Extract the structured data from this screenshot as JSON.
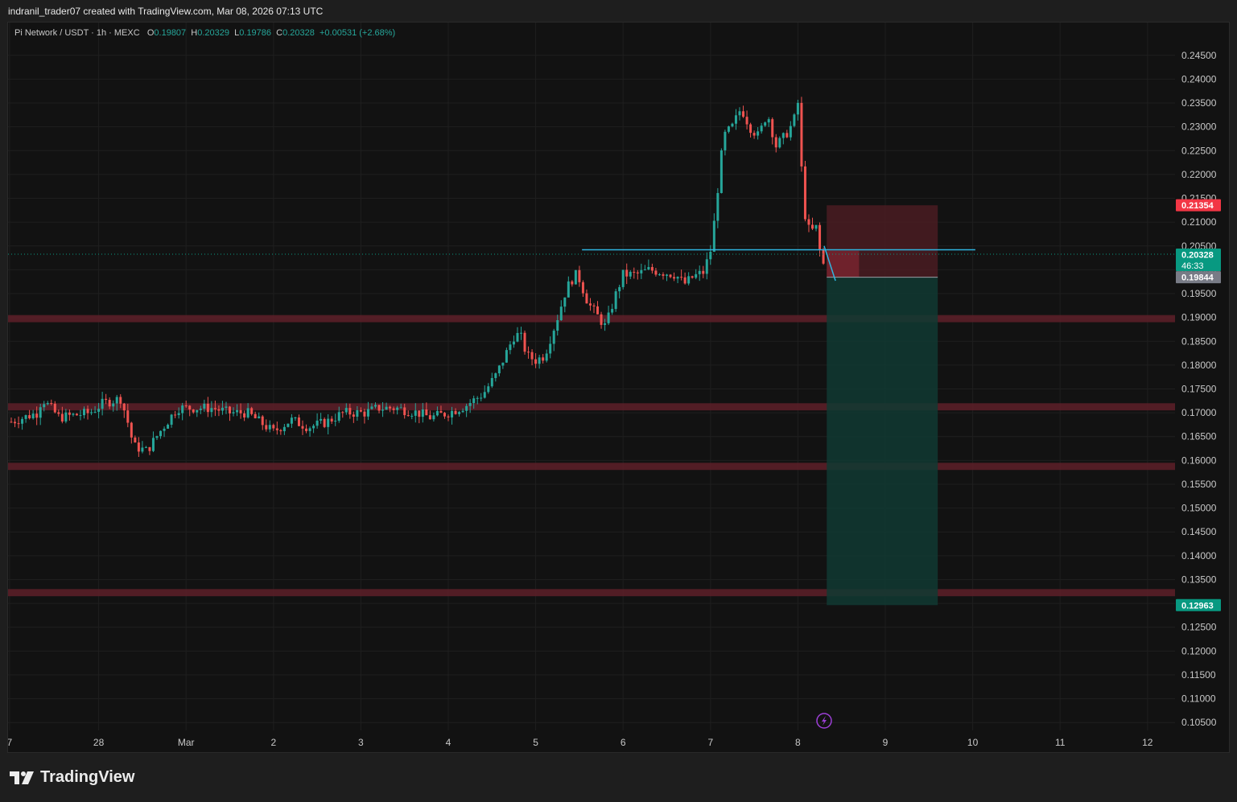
{
  "header": {
    "text": "indranil_trader07 created with TradingView.com, Mar 08, 2026 07:13 UTC"
  },
  "legend": {
    "symbol": "Pi Network / USDT · 1h · MEXC",
    "o_label": "O",
    "o": "0.19807",
    "h_label": "H",
    "h": "0.20329",
    "l_label": "L",
    "l": "0.19786",
    "c_label": "C",
    "c": "0.20328",
    "change": "+0.00531 (+2.68%)"
  },
  "brand": {
    "name": "TradingView"
  },
  "colors": {
    "up": "#26a69a",
    "down": "#ef5350",
    "grid": "#1f1f1f",
    "axis_text": "#c8c8c8",
    "zone": "#5a1f28",
    "level_line": "#2fb5e0",
    "stop_box": "#4a1c22",
    "target_box": "#103a32",
    "sl_badge": "#f23645",
    "price_badge": "#089981",
    "entry_badge": "#787b86",
    "tp_badge": "#089981",
    "icon": "#9c3fd6"
  },
  "chart_data": {
    "type": "candlestick",
    "title": "",
    "symbol": "Pi Network / USDT",
    "timeframe": "1h",
    "exchange": "MEXC",
    "ylim": [
      0.1025,
      0.2475
    ],
    "y_ticks": [
      "0.24500",
      "0.24000",
      "0.23500",
      "0.23000",
      "0.22500",
      "0.22000",
      "0.21500",
      "0.21000",
      "0.20500",
      "0.20000",
      "0.19500",
      "0.19000",
      "0.18500",
      "0.18000",
      "0.17500",
      "0.17000",
      "0.16500",
      "0.16000",
      "0.15500",
      "0.15000",
      "0.14500",
      "0.14000",
      "0.13500",
      "0.13000",
      "0.12500",
      "0.12000",
      "0.11500",
      "0.11000",
      "0.10500"
    ],
    "x_ticks": [
      {
        "label": "7",
        "day": -0.02
      },
      {
        "label": "28",
        "day": 1.0
      },
      {
        "label": "Mar",
        "day": 2.0
      },
      {
        "label": "2",
        "day": 3.0
      },
      {
        "label": "3",
        "day": 4.0
      },
      {
        "label": "4",
        "day": 5.0
      },
      {
        "label": "5",
        "day": 6.0
      },
      {
        "label": "6",
        "day": 7.0
      },
      {
        "label": "7",
        "day": 8.0
      },
      {
        "label": "8",
        "day": 9.0
      },
      {
        "label": "9",
        "day": 10.0
      },
      {
        "label": "10",
        "day": 11.0
      },
      {
        "label": "11",
        "day": 12.0
      },
      {
        "label": "12",
        "day": 13.0
      }
    ],
    "price_path": [
      [
        0.0,
        0.1681
      ],
      [
        0.3,
        0.17
      ],
      [
        0.35,
        0.173
      ],
      [
        0.55,
        0.169
      ],
      [
        0.9,
        0.17
      ],
      [
        1.05,
        0.172
      ],
      [
        1.25,
        0.173
      ],
      [
        1.32,
        0.169
      ],
      [
        1.4,
        0.163
      ],
      [
        1.55,
        0.162
      ],
      [
        1.7,
        0.166
      ],
      [
        1.9,
        0.171
      ],
      [
        2.1,
        0.171
      ],
      [
        2.3,
        0.171
      ],
      [
        2.5,
        0.17
      ],
      [
        2.7,
        0.17
      ],
      [
        2.85,
        0.168
      ],
      [
        3.0,
        0.166
      ],
      [
        3.2,
        0.1685
      ],
      [
        3.4,
        0.167
      ],
      [
        3.6,
        0.168
      ],
      [
        3.8,
        0.17
      ],
      [
        4.05,
        0.17
      ],
      [
        4.2,
        0.171
      ],
      [
        4.4,
        0.171
      ],
      [
        4.65,
        0.17
      ],
      [
        4.8,
        0.169
      ],
      [
        5.0,
        0.17
      ],
      [
        5.2,
        0.1715
      ],
      [
        5.4,
        0.174
      ],
      [
        5.55,
        0.178
      ],
      [
        5.65,
        0.182
      ],
      [
        5.75,
        0.186
      ],
      [
        5.82,
        0.1865
      ],
      [
        5.9,
        0.182
      ],
      [
        6.0,
        0.181
      ],
      [
        6.1,
        0.182
      ],
      [
        6.25,
        0.19
      ],
      [
        6.35,
        0.196
      ],
      [
        6.45,
        0.199
      ],
      [
        6.5,
        0.198
      ],
      [
        6.6,
        0.193
      ],
      [
        6.72,
        0.19
      ],
      [
        6.8,
        0.188
      ],
      [
        6.9,
        0.194
      ],
      [
        7.0,
        0.199
      ],
      [
        7.15,
        0.199
      ],
      [
        7.3,
        0.2
      ],
      [
        7.45,
        0.1995
      ],
      [
        7.6,
        0.199
      ],
      [
        7.7,
        0.197
      ],
      [
        7.8,
        0.1985
      ],
      [
        7.92,
        0.1995
      ],
      [
        8.0,
        0.204
      ],
      [
        8.05,
        0.211
      ],
      [
        8.1,
        0.22
      ],
      [
        8.15,
        0.228
      ],
      [
        8.25,
        0.23
      ],
      [
        8.35,
        0.234
      ],
      [
        8.45,
        0.23
      ],
      [
        8.55,
        0.228
      ],
      [
        8.65,
        0.233
      ],
      [
        8.75,
        0.226
      ],
      [
        8.85,
        0.228
      ],
      [
        8.95,
        0.231
      ],
      [
        9.0,
        0.235
      ],
      [
        9.03,
        0.225
      ],
      [
        9.06,
        0.215
      ],
      [
        9.1,
        0.209
      ],
      [
        9.15,
        0.208
      ],
      [
        9.22,
        0.209
      ],
      [
        9.25,
        0.204
      ],
      [
        9.28,
        0.1981
      ],
      [
        9.3,
        0.2033
      ]
    ],
    "zones": [
      {
        "low": 0.189,
        "high": 0.1905
      },
      {
        "low": 0.1705,
        "high": 0.172
      },
      {
        "low": 0.158,
        "high": 0.1595
      },
      {
        "low": 0.1315,
        "high": 0.133
      }
    ],
    "horizontal_line": {
      "value": 0.2042,
      "from_day": 6.53,
      "to_day": 11.03
    },
    "projection_line": [
      [
        9.3,
        0.205
      ],
      [
        9.43,
        0.1977
      ]
    ],
    "position": {
      "from_day": 9.33,
      "to_day": 10.6,
      "stop": 0.21354,
      "entry": 0.19844,
      "target": 0.12963,
      "filled_to_day": 9.7
    },
    "last_price": 0.20328,
    "price_badges": [
      {
        "value": "0.21354",
        "kind": "stop"
      },
      {
        "value": "0.20328",
        "kind": "last",
        "sub": "46:33"
      },
      {
        "value": "0.19844",
        "kind": "entry"
      },
      {
        "value": "0.12963",
        "kind": "target"
      }
    ],
    "marker": {
      "day": 9.3,
      "icon": "lightning-icon"
    },
    "grid": true
  }
}
